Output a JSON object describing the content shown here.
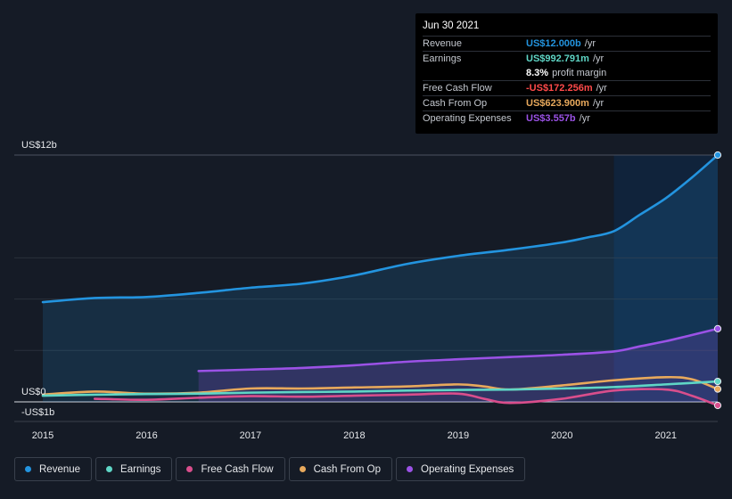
{
  "colors": {
    "background": "#151b26",
    "revenue": "#2394df",
    "earnings": "#5fd6c6",
    "free_cash_flow": "#d94e8c",
    "cash_from_op": "#e8a95c",
    "operating_expenses": "#9b52e6",
    "negative": "#ff4a4a"
  },
  "tooltip": {
    "date": "Jun 30 2021",
    "rows": [
      {
        "label": "Revenue",
        "value": "US$12.000b",
        "unit": "/yr",
        "color": "#2394df"
      },
      {
        "label": "Earnings",
        "value": "US$992.791m",
        "unit": "/yr",
        "color": "#5fd6c6"
      },
      {
        "label": "",
        "value": "8.3%",
        "unit": "profit margin",
        "color": "#ffffff"
      },
      {
        "label": "Free Cash Flow",
        "value": "-US$172.256m",
        "unit": "/yr",
        "color": "#ff4a4a"
      },
      {
        "label": "Cash From Op",
        "value": "US$623.900m",
        "unit": "/yr",
        "color": "#e8a95c"
      },
      {
        "label": "Operating Expenses",
        "value": "US$3.557b",
        "unit": "/yr",
        "color": "#9b52e6"
      }
    ]
  },
  "legend": [
    {
      "label": "Revenue",
      "color": "#2394df"
    },
    {
      "label": "Earnings",
      "color": "#5fd6c6"
    },
    {
      "label": "Free Cash Flow",
      "color": "#d94e8c"
    },
    {
      "label": "Cash From Op",
      "color": "#e8a95c"
    },
    {
      "label": "Operating Expenses",
      "color": "#9b52e6"
    }
  ],
  "chart_data": {
    "type": "line",
    "title": "",
    "xlabel": "",
    "ylabel": "",
    "ylim": [
      -1,
      12
    ],
    "xlim": [
      2015.0,
      2021.5
    ],
    "x_ticks": [
      2015,
      2016,
      2017,
      2018,
      2019,
      2020,
      2021
    ],
    "x_tick_labels": [
      "2015",
      "2016",
      "2017",
      "2018",
      "2019",
      "2020",
      "2021"
    ],
    "y_tick_values": [
      12,
      0,
      -1
    ],
    "y_tick_labels": [
      "US$12b",
      "US$0",
      "-US$1b"
    ],
    "gridlines": [
      12,
      7,
      5,
      2.5
    ],
    "highlight_from": 2020.5,
    "series": [
      {
        "name": "Revenue",
        "key": "revenue",
        "fill": true,
        "x": [
          2015.0,
          2015.5,
          2016.0,
          2016.5,
          2017.0,
          2017.5,
          2018.0,
          2018.5,
          2019.0,
          2019.5,
          2020.0,
          2020.25,
          2020.5,
          2020.75,
          2021.0,
          2021.25,
          2021.5
        ],
        "values": [
          4.85,
          5.05,
          5.1,
          5.3,
          5.55,
          5.75,
          6.15,
          6.7,
          7.1,
          7.4,
          7.75,
          8.0,
          8.3,
          9.1,
          9.9,
          10.9,
          12.0
        ]
      },
      {
        "name": "Operating Expenses",
        "key": "operating_expenses",
        "fill": true,
        "x": [
          2016.5,
          2017.0,
          2017.5,
          2018.0,
          2018.5,
          2019.0,
          2019.5,
          2020.0,
          2020.5,
          2020.75,
          2021.0,
          2021.25,
          2021.5
        ],
        "values": [
          1.5,
          1.57,
          1.65,
          1.78,
          1.95,
          2.07,
          2.18,
          2.29,
          2.45,
          2.7,
          2.95,
          3.25,
          3.557
        ]
      },
      {
        "name": "Cash From Op",
        "key": "cash_from_op",
        "fill": false,
        "x": [
          2015.0,
          2015.5,
          2016.0,
          2016.5,
          2017.0,
          2017.5,
          2018.0,
          2018.5,
          2019.0,
          2019.25,
          2019.5,
          2020.0,
          2020.5,
          2021.0,
          2021.25,
          2021.5
        ],
        "values": [
          0.35,
          0.5,
          0.4,
          0.45,
          0.65,
          0.65,
          0.7,
          0.75,
          0.85,
          0.75,
          0.6,
          0.8,
          1.05,
          1.2,
          1.1,
          0.624
        ]
      },
      {
        "name": "Earnings",
        "key": "earnings",
        "fill": false,
        "x": [
          2015.0,
          2015.5,
          2016.0,
          2016.5,
          2017.0,
          2017.5,
          2018.0,
          2018.5,
          2019.0,
          2019.5,
          2020.0,
          2020.5,
          2021.0,
          2021.5
        ],
        "values": [
          0.3,
          0.35,
          0.38,
          0.4,
          0.45,
          0.48,
          0.5,
          0.55,
          0.58,
          0.6,
          0.65,
          0.72,
          0.85,
          0.993
        ]
      },
      {
        "name": "Free Cash Flow",
        "key": "free_cash_flow",
        "fill": false,
        "x": [
          2015.5,
          2016.0,
          2016.5,
          2017.0,
          2017.5,
          2018.0,
          2018.5,
          2019.0,
          2019.25,
          2019.5,
          2020.0,
          2020.5,
          2021.0,
          2021.25,
          2021.5
        ],
        "values": [
          0.15,
          0.1,
          0.2,
          0.28,
          0.25,
          0.3,
          0.35,
          0.4,
          0.15,
          -0.05,
          0.15,
          0.55,
          0.6,
          0.3,
          -0.172
        ]
      }
    ]
  }
}
